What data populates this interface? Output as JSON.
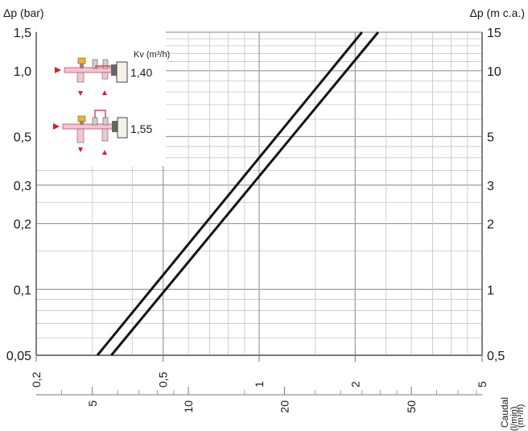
{
  "chart_data": {
    "type": "line",
    "left_axis": {
      "label": "Δp (bar)",
      "scale": "log",
      "range": [
        0.05,
        1.5
      ],
      "ticks": [
        {
          "value": 1.5,
          "text": "1,5"
        },
        {
          "value": 1.0,
          "text": "1,0"
        },
        {
          "value": 0.5,
          "text": "0,5"
        },
        {
          "value": 0.3,
          "text": "0,3"
        },
        {
          "value": 0.2,
          "text": "0,2"
        },
        {
          "value": 0.1,
          "text": "0,1"
        },
        {
          "value": 0.05,
          "text": "0,05"
        }
      ]
    },
    "right_axis": {
      "label": "Δp (m c.a.)",
      "scale": "log",
      "range": [
        0.5,
        15
      ],
      "ticks": [
        {
          "value": 15,
          "text": "15"
        },
        {
          "value": 10,
          "text": "10"
        },
        {
          "value": 5,
          "text": "5"
        },
        {
          "value": 3,
          "text": "3"
        },
        {
          "value": 2,
          "text": "2"
        },
        {
          "value": 1,
          "text": "1"
        },
        {
          "value": 0.5,
          "text": "0,5"
        }
      ]
    },
    "x_axis_m3h": {
      "label": "(m³/h)",
      "scale": "log",
      "range": [
        0.2,
        5
      ],
      "ticks": [
        {
          "value": 0.2,
          "text": "0,2"
        },
        {
          "value": 0.5,
          "text": "0,5"
        },
        {
          "value": 1,
          "text": "1"
        },
        {
          "value": 2,
          "text": "2"
        },
        {
          "value": 5,
          "text": "5"
        }
      ]
    },
    "x_axis_lmin": {
      "label": "(l/min)",
      "scale": "log",
      "ticks": [
        {
          "value": 5,
          "text": "5"
        },
        {
          "value": 10,
          "text": "10"
        },
        {
          "value": 20,
          "text": "20"
        },
        {
          "value": 50,
          "text": "50"
        }
      ]
    },
    "x_title": "Caudal",
    "series": [
      {
        "kv": 1.4,
        "x_m3h": [
          0.311,
          2.1
        ],
        "y_bar": [
          0.05,
          1.5
        ]
      },
      {
        "kv": 1.55,
        "x_m3h": [
          0.344,
          2.36
        ],
        "y_bar": [
          0.05,
          1.5
        ]
      }
    ]
  },
  "legend": {
    "header": "Kv (m³/h)",
    "items": [
      {
        "kv_text": "1,40"
      },
      {
        "kv_text": "1,55"
      }
    ]
  },
  "colors": {
    "pipe": "#f2c6d2",
    "pipe_outline": "#e23b5a",
    "arrow": "#e0192e",
    "handle": "#f2b12a",
    "body": "#666666",
    "box": "#f4f1e8"
  }
}
